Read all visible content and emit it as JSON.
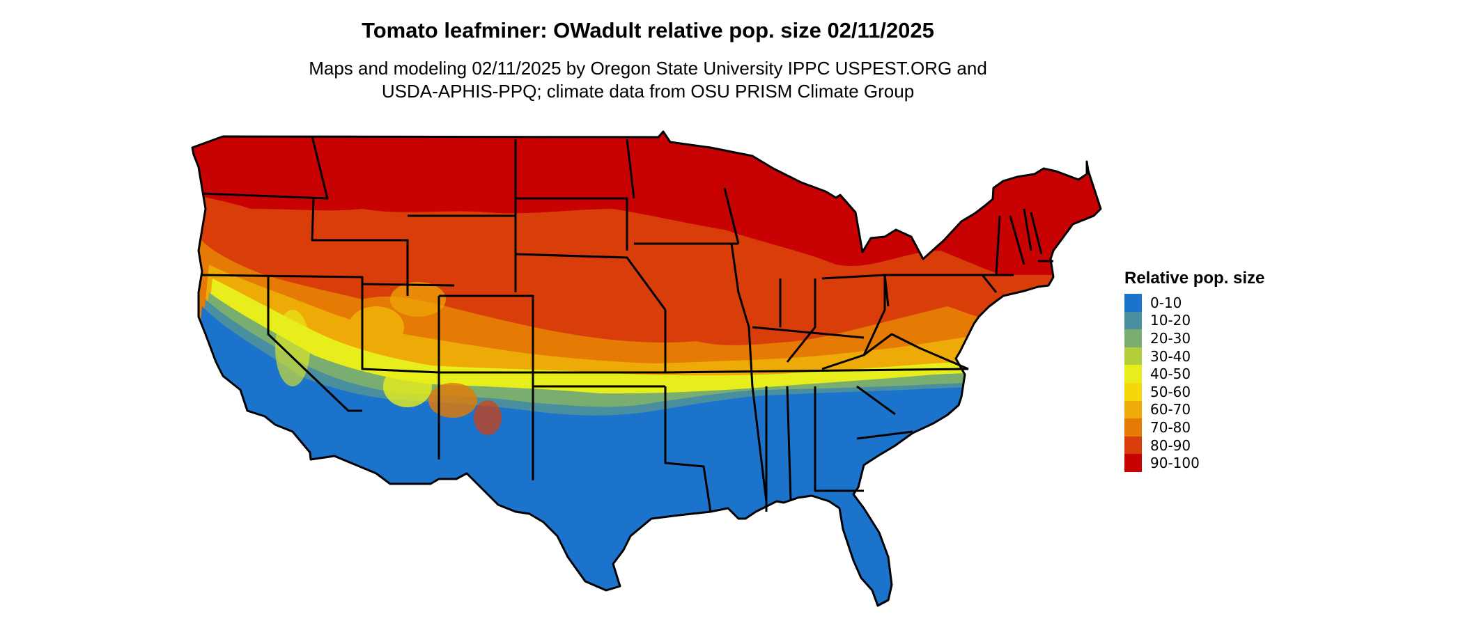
{
  "title": "Tomato leafminer: OWadult relative pop. size 02/11/2025",
  "subtitle_line1": "Maps and modeling 02/11/2025 by Oregon State University IPPC USPEST.ORG and",
  "subtitle_line2": "USDA-APHIS-PPQ; climate data from OSU PRISM Climate Group",
  "legend": {
    "title": "Relative pop. size",
    "items": [
      {
        "label": "0-10",
        "color": "#1c73cc"
      },
      {
        "label": "10-20",
        "color": "#4a8fa0"
      },
      {
        "label": "20-30",
        "color": "#7aad70"
      },
      {
        "label": "30-40",
        "color": "#b2cf3a"
      },
      {
        "label": "40-50",
        "color": "#e8ee1c"
      },
      {
        "label": "50-60",
        "color": "#f5d70a"
      },
      {
        "label": "60-70",
        "color": "#eeaa06"
      },
      {
        "label": "70-80",
        "color": "#e57a04"
      },
      {
        "label": "80-90",
        "color": "#d93e0a"
      },
      {
        "label": "90-100",
        "color": "#c80202"
      }
    ]
  }
}
